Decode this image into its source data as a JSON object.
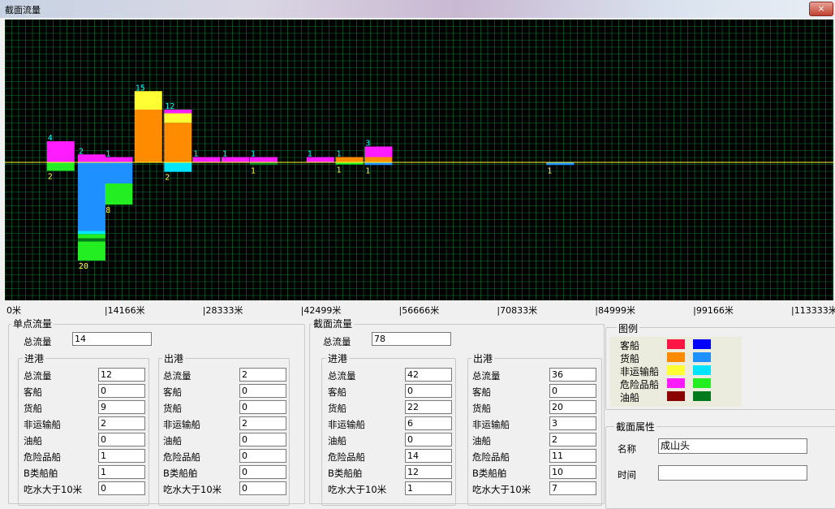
{
  "window": {
    "title": "截面流量",
    "close": "×"
  },
  "chart_data": {
    "type": "bar",
    "baseline_color": "#ffff33",
    "grid_color": "#0b7a3a",
    "x_ticks": [
      "0米",
      "14166米",
      "28333米",
      "42499米",
      "56666米",
      "70833米",
      "84999米",
      "99166米",
      "113333米"
    ],
    "x_range": [
      0,
      113333
    ],
    "up_stacks": [
      {
        "x": 4000,
        "total": 4,
        "segs": [
          {
            "type": "dangerous",
            "v": 4
          }
        ]
      },
      {
        "x": 8800,
        "total": 2,
        "segs": [
          {
            "type": "dangerous",
            "v": 1.5
          }
        ]
      },
      {
        "x": 13000,
        "total": 1,
        "segs": [
          {
            "type": "dangerous",
            "v": 1
          }
        ]
      },
      {
        "x": 17600,
        "total": 15,
        "segs": [
          {
            "type": "cargo",
            "v": 10
          },
          {
            "type": "nonTransport",
            "v": 3.5
          }
        ]
      },
      {
        "x": 22200,
        "total": 12,
        "segs": [
          {
            "type": "cargo",
            "v": 7.5
          },
          {
            "type": "nonTransport",
            "v": 1.8
          },
          {
            "type": "dangerous",
            "v": 0.7
          }
        ]
      },
      {
        "x": 26600,
        "total": 1,
        "segs": [
          {
            "type": "dangerous",
            "v": 1
          }
        ]
      },
      {
        "x": 31100,
        "total": 1,
        "segs": [
          {
            "type": "dangerous",
            "v": 1
          }
        ]
      },
      {
        "x": 35500,
        "total": 1,
        "segs": [
          {
            "type": "dangerous",
            "v": 1
          }
        ]
      },
      {
        "x": 44300,
        "total": 1,
        "segs": [
          {
            "type": "dangerous",
            "v": 1
          }
        ]
      },
      {
        "x": 48800,
        "total": 1,
        "segs": [
          {
            "type": "cargo",
            "v": 1
          }
        ]
      },
      {
        "x": 53300,
        "total": 3,
        "segs": [
          {
            "type": "cargo",
            "v": 1
          },
          {
            "type": "dangerous",
            "v": 2
          }
        ]
      }
    ],
    "down_stacks": [
      {
        "x": 4000,
        "total": 2,
        "segs": [
          {
            "type": "dangerous_out",
            "v": 1.6
          }
        ]
      },
      {
        "x": 8800,
        "total": 20,
        "segs": [
          {
            "type": "cargo_out",
            "v": 13
          },
          {
            "type": "nonTransport_out",
            "v": 0.6
          },
          {
            "type": "dangerous_out",
            "v": 0.8
          },
          {
            "type": "tanker_out",
            "v": 0.6
          },
          {
            "type": "dangerous_out",
            "v": 3.6
          }
        ]
      },
      {
        "x": 13000,
        "total": 8,
        "segs": [
          {
            "type": "cargo_out",
            "v": 4
          },
          {
            "type": "dangerous_out",
            "v": 4
          }
        ]
      },
      {
        "x": 22200,
        "total": 2,
        "segs": [
          {
            "type": "nonTransport_out",
            "v": 1.8
          }
        ]
      },
      {
        "x": 35500,
        "total": 1,
        "segs": [
          {
            "type": "tanker_out",
            "v": 0.5
          }
        ]
      },
      {
        "x": 48800,
        "total": 1,
        "segs": [
          {
            "type": "dangerous_out",
            "v": 0.4
          }
        ]
      },
      {
        "x": 53300,
        "total": 1,
        "segs": [
          {
            "type": "cargo_out",
            "v": 0.5
          }
        ]
      },
      {
        "x": 81500,
        "total": 1,
        "segs": [
          {
            "type": "cargo_out",
            "v": 0.5
          }
        ]
      }
    ],
    "colors": {
      "passenger": "#ff1744",
      "cargo": "#ff8c00",
      "nonTransport": "#ffff33",
      "dangerous": "#ff1cff",
      "tanker": "#8b0000",
      "passenger_out": "#0000ff",
      "cargo_out": "#1e90ff",
      "nonTransport_out": "#00e5ff",
      "dangerous_out": "#22ee22",
      "tanker_out": "#007a1a"
    },
    "up_label_color": "#00ffff",
    "down_label_color": "#ffff33"
  },
  "single": {
    "title": "单点流量",
    "total_label": "总流量",
    "total_value": "14",
    "in": {
      "title": "进港",
      "rows": [
        [
          "总流量",
          "12"
        ],
        [
          "客船",
          "0"
        ],
        [
          "货船",
          "9"
        ],
        [
          "非运输船",
          "2"
        ],
        [
          "油船",
          "0"
        ],
        [
          "危险品船",
          "1"
        ],
        [
          "B类船舶",
          "1"
        ],
        [
          "吃水大于10米",
          "0"
        ]
      ]
    },
    "out": {
      "title": "出港",
      "rows": [
        [
          "总流量",
          "2"
        ],
        [
          "客船",
          "0"
        ],
        [
          "货船",
          "0"
        ],
        [
          "非运输船",
          "2"
        ],
        [
          "油船",
          "0"
        ],
        [
          "危险品船",
          "0"
        ],
        [
          "B类船舶",
          "0"
        ],
        [
          "吃水大于10米",
          "0"
        ]
      ]
    }
  },
  "section": {
    "title": "截面流量",
    "total_label": "总流量",
    "total_value": "78",
    "in": {
      "title": "进港",
      "rows": [
        [
          "总流量",
          "42"
        ],
        [
          "客船",
          "0"
        ],
        [
          "货船",
          "22"
        ],
        [
          "非运输船",
          "6"
        ],
        [
          "油船",
          "0"
        ],
        [
          "危险品船",
          "14"
        ],
        [
          "B类船舶",
          "12"
        ],
        [
          "吃水大于10米",
          "1"
        ]
      ]
    },
    "out": {
      "title": "出港",
      "rows": [
        [
          "总流量",
          "36"
        ],
        [
          "客船",
          "0"
        ],
        [
          "货船",
          "20"
        ],
        [
          "非运输船",
          "3"
        ],
        [
          "油船",
          "2"
        ],
        [
          "危险品船",
          "11"
        ],
        [
          "B类船舶",
          "10"
        ],
        [
          "吃水大于10米",
          "7"
        ]
      ]
    }
  },
  "legend": {
    "title": "图例",
    "items": [
      {
        "label": "客船",
        "in_color": "#ff1744",
        "out_color": "#0000ff"
      },
      {
        "label": "货船",
        "in_color": "#ff8c00",
        "out_color": "#1e90ff"
      },
      {
        "label": "非运输船",
        "in_color": "#ffff33",
        "out_color": "#00e5ff"
      },
      {
        "label": "危险品船",
        "in_color": "#ff1cff",
        "out_color": "#22ee22"
      },
      {
        "label": "油船",
        "in_color": "#8b0000",
        "out_color": "#007a1a"
      }
    ]
  },
  "props": {
    "title": "截面属性",
    "name_label": "名称",
    "name_value": "成山头",
    "time_label": "时间",
    "time_value": ""
  }
}
